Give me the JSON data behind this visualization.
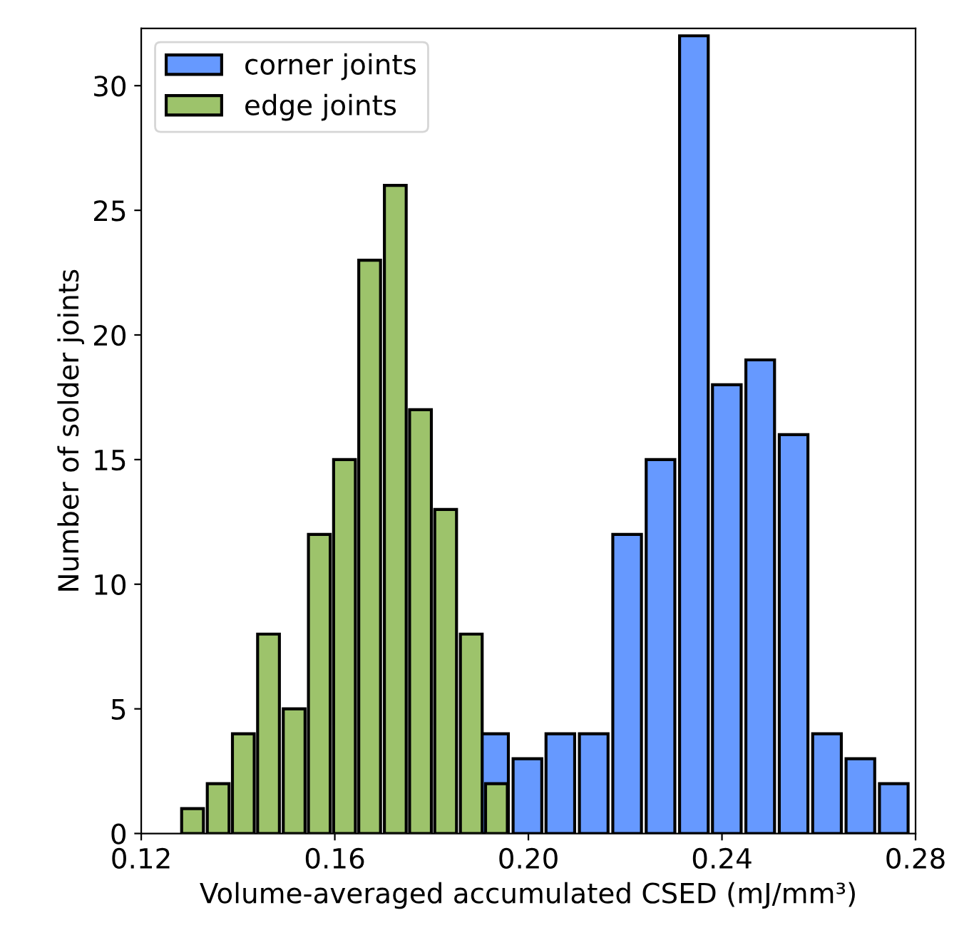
{
  "chart_data": {
    "type": "bar",
    "xlabel": "Volume-averaged accumulated CSED (mJ/mm³)",
    "ylabel": "Number of solder joints",
    "series": [
      {
        "name": "corner joints",
        "color": "#6699ff",
        "x": [
          0.1929,
          0.1998,
          0.2066,
          0.2135,
          0.2204,
          0.2273,
          0.2342,
          0.241,
          0.2479,
          0.2548,
          0.2617,
          0.2686,
          0.2755
        ],
        "values": [
          4,
          3,
          4,
          4,
          12,
          15,
          32,
          18,
          19,
          16,
          4,
          3,
          2
        ]
      },
      {
        "name": "edge joints",
        "color": "#9dc36b",
        "x": [
          0.1306,
          0.1359,
          0.1411,
          0.1463,
          0.1516,
          0.1568,
          0.162,
          0.1672,
          0.1725,
          0.1777,
          0.1829,
          0.1882,
          0.1934
        ],
        "values": [
          1,
          2,
          4,
          8,
          5,
          12,
          15,
          23,
          26,
          17,
          13,
          8,
          2
        ]
      }
    ],
    "xlim": [
      0.12,
      0.28
    ],
    "xticks": [
      0.12,
      0.16,
      {
        "value": 0.2,
        "label": "0.20"
      },
      0.24,
      0.28
    ],
    "ylim": [
      0,
      32.3
    ],
    "yticks": [
      0,
      5,
      10,
      15,
      20,
      25,
      30
    ],
    "legend": "top left"
  }
}
